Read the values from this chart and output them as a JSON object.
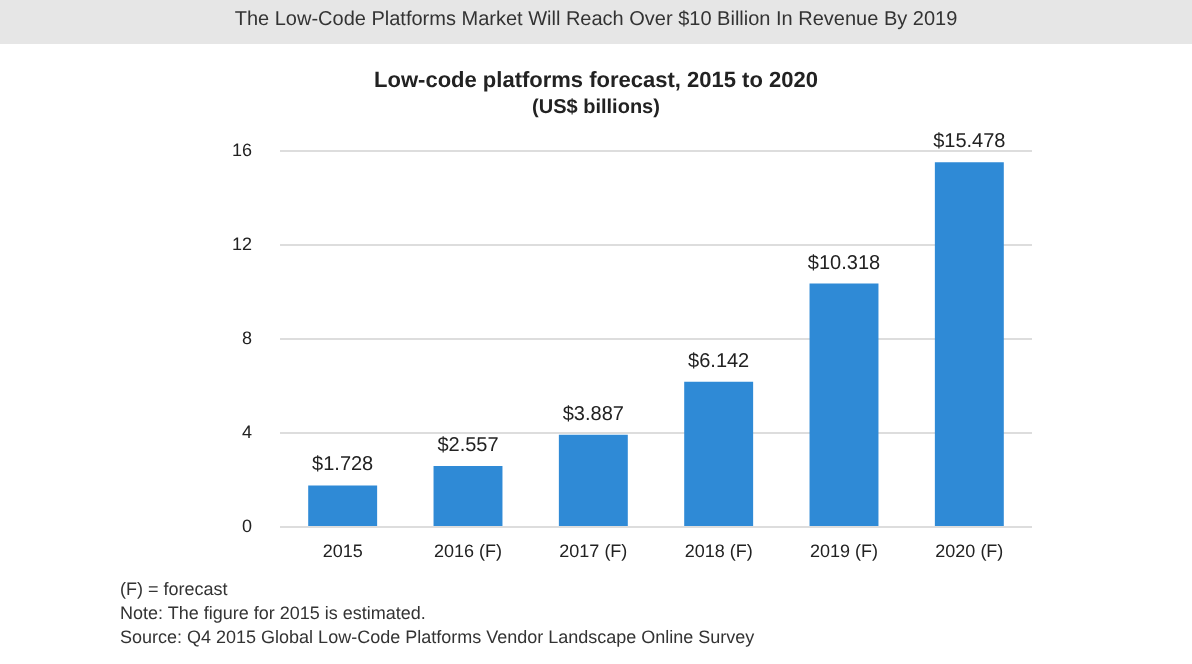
{
  "chart_data": {
    "type": "bar",
    "title": "Low-code platforms forecast, 2015 to 2020",
    "subtitle": "(US$ billions)",
    "categories": [
      "2015",
      "2016 (F)",
      "2017 (F)",
      "2018 (F)",
      "2019 (F)",
      "2020 (F)"
    ],
    "values": [
      1.728,
      2.557,
      3.887,
      6.142,
      10.318,
      15.478
    ],
    "value_labels": [
      "$1.728",
      "$2.557",
      "$3.887",
      "$6.142",
      "$10.318",
      "$15.478"
    ],
    "color": "#2f8ad6",
    "ylim": [
      0,
      16
    ],
    "yticks": [
      0,
      4,
      8,
      12,
      16
    ],
    "grid": "y",
    "annotations": [
      "The Low-Code Platforms Market Will Reach Over $10 Billion In Revenue By 2019",
      "(F) = forecast",
      "Note: The figure for 2015 is estimated.",
      "Source: Q4 2015 Global Low-Code Platforms Vendor Landscape Online Survey"
    ]
  }
}
